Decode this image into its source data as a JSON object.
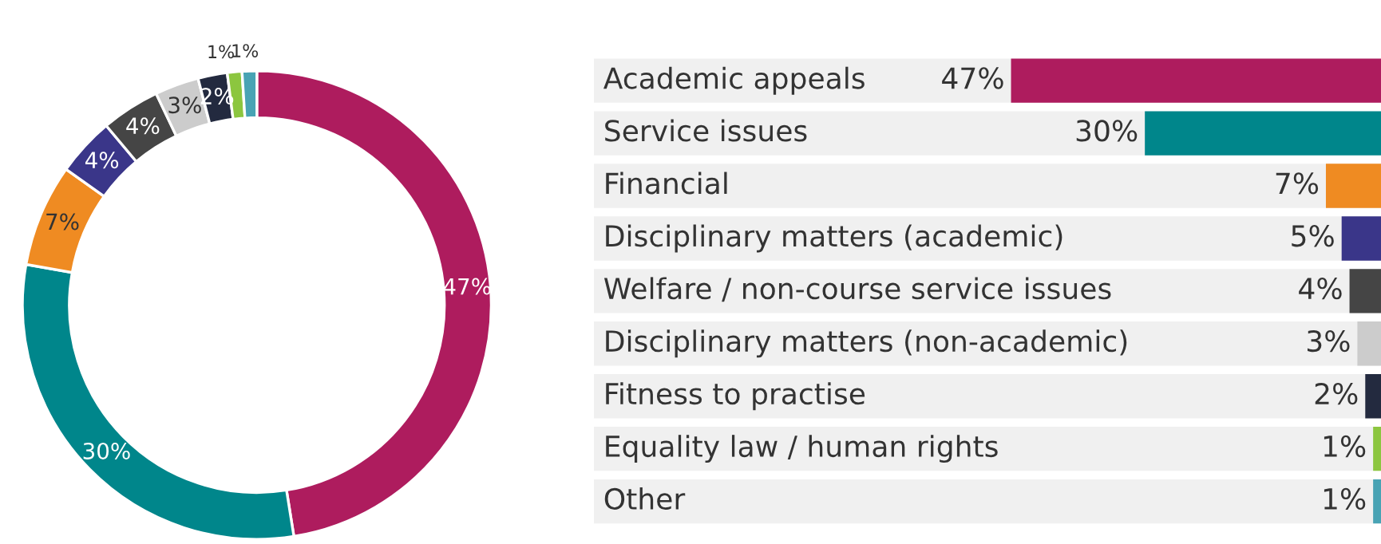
{
  "chart_data": [
    {
      "type": "donut",
      "categories": [
        null,
        null,
        null,
        null,
        null,
        null,
        null,
        null,
        null
      ],
      "values": [
        47,
        30,
        7,
        4,
        4,
        3,
        2,
        1,
        1
      ],
      "value_labels": [
        "47%",
        "30%",
        "7%",
        "4%",
        "4%",
        "3%",
        "2%",
        "1%",
        "1%"
      ],
      "colors": [
        "#ae1c5e",
        "#00868b",
        "#ef8b22",
        "#3a3689",
        "#454545",
        "#cccccc",
        "#232a3f",
        "#8cc63f",
        "#48a3b4"
      ]
    },
    {
      "type": "bar",
      "orientation": "horizontal",
      "categories": [
        "Academic appeals",
        "Service issues",
        "Financial",
        "Disciplinary matters (academic)",
        "Welfare / non-course service issues",
        "Disciplinary matters (non-academic)",
        "Fitness to practise",
        "Equality law / human rights",
        "Other"
      ],
      "values": [
        47,
        30,
        7,
        5,
        4,
        3,
        2,
        1,
        1
      ],
      "value_labels": [
        "47%",
        "30%",
        "7%",
        "5%",
        "4%",
        "3%",
        "2%",
        "1%",
        "1%"
      ],
      "colors": [
        "#ae1c5e",
        "#00868b",
        "#ef8b22",
        "#3a3689",
        "#454545",
        "#cccccc",
        "#232a3f",
        "#8cc63f",
        "#48a3b4"
      ]
    }
  ]
}
